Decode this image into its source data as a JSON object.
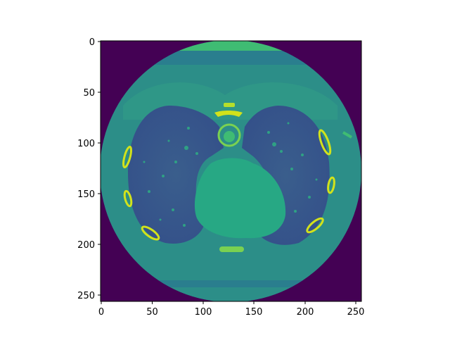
{
  "chart_data": {
    "type": "heatmap",
    "title": "",
    "xlabel": "",
    "ylabel": "",
    "xlim": [
      0,
      255
    ],
    "ylim": [
      255,
      0
    ],
    "x_ticks": [
      "0",
      "50",
      "100",
      "150",
      "200",
      "250"
    ],
    "y_ticks": [
      "0",
      "50",
      "100",
      "150",
      "200",
      "250"
    ],
    "colormap": "viridis",
    "image_content": "axial chest CT slice (lungs, heart, spine, ribs)"
  },
  "colors": {
    "outside": "#440154",
    "body": "#2c8e88",
    "lung": "#3b5b8b",
    "heart": "#27a884",
    "bone": "#d2e21b"
  }
}
